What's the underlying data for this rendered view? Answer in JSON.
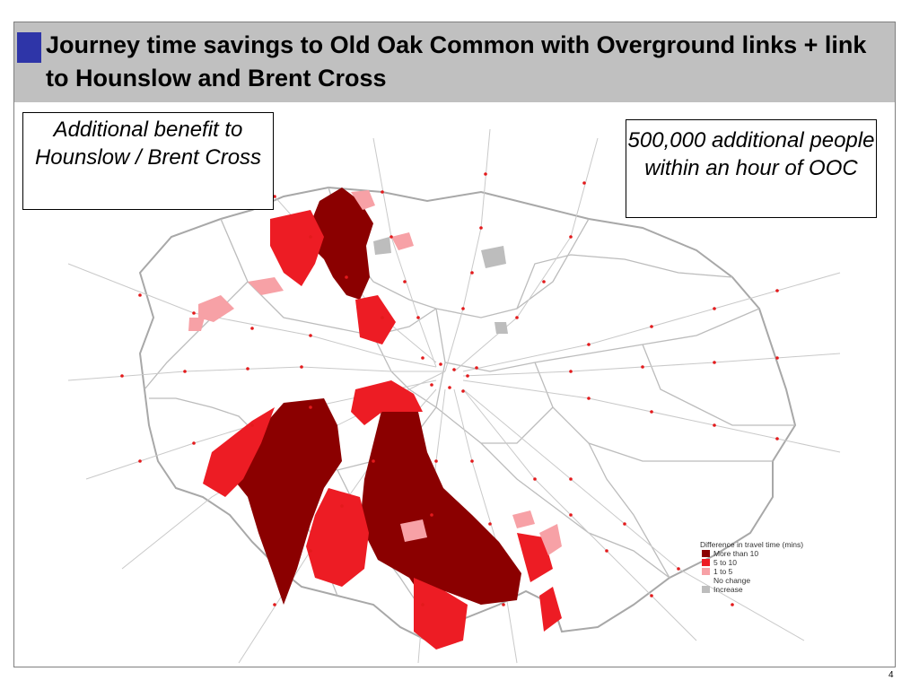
{
  "slide": {
    "title": "Journey time savings to Old Oak Common with Overground links + link to Hounslow and Brent Cross",
    "page_number": "4",
    "accent_color": "#2e35a8"
  },
  "callouts": {
    "left": "Additional benefit to Hounslow / Brent Cross",
    "right": "500,000 additional people within an hour of OOC"
  },
  "legend": {
    "title": "Difference in travel time (mins)",
    "items": [
      {
        "label": "More than 10",
        "color": "#8b0000"
      },
      {
        "label": "5 to 10",
        "color": "#ed1c24"
      },
      {
        "label": "1 to 5",
        "color": "#f7a1a6"
      },
      {
        "label": "No change",
        "color": "none"
      },
      {
        "label": "Increase",
        "color": "#bdbdbd"
      }
    ]
  }
}
